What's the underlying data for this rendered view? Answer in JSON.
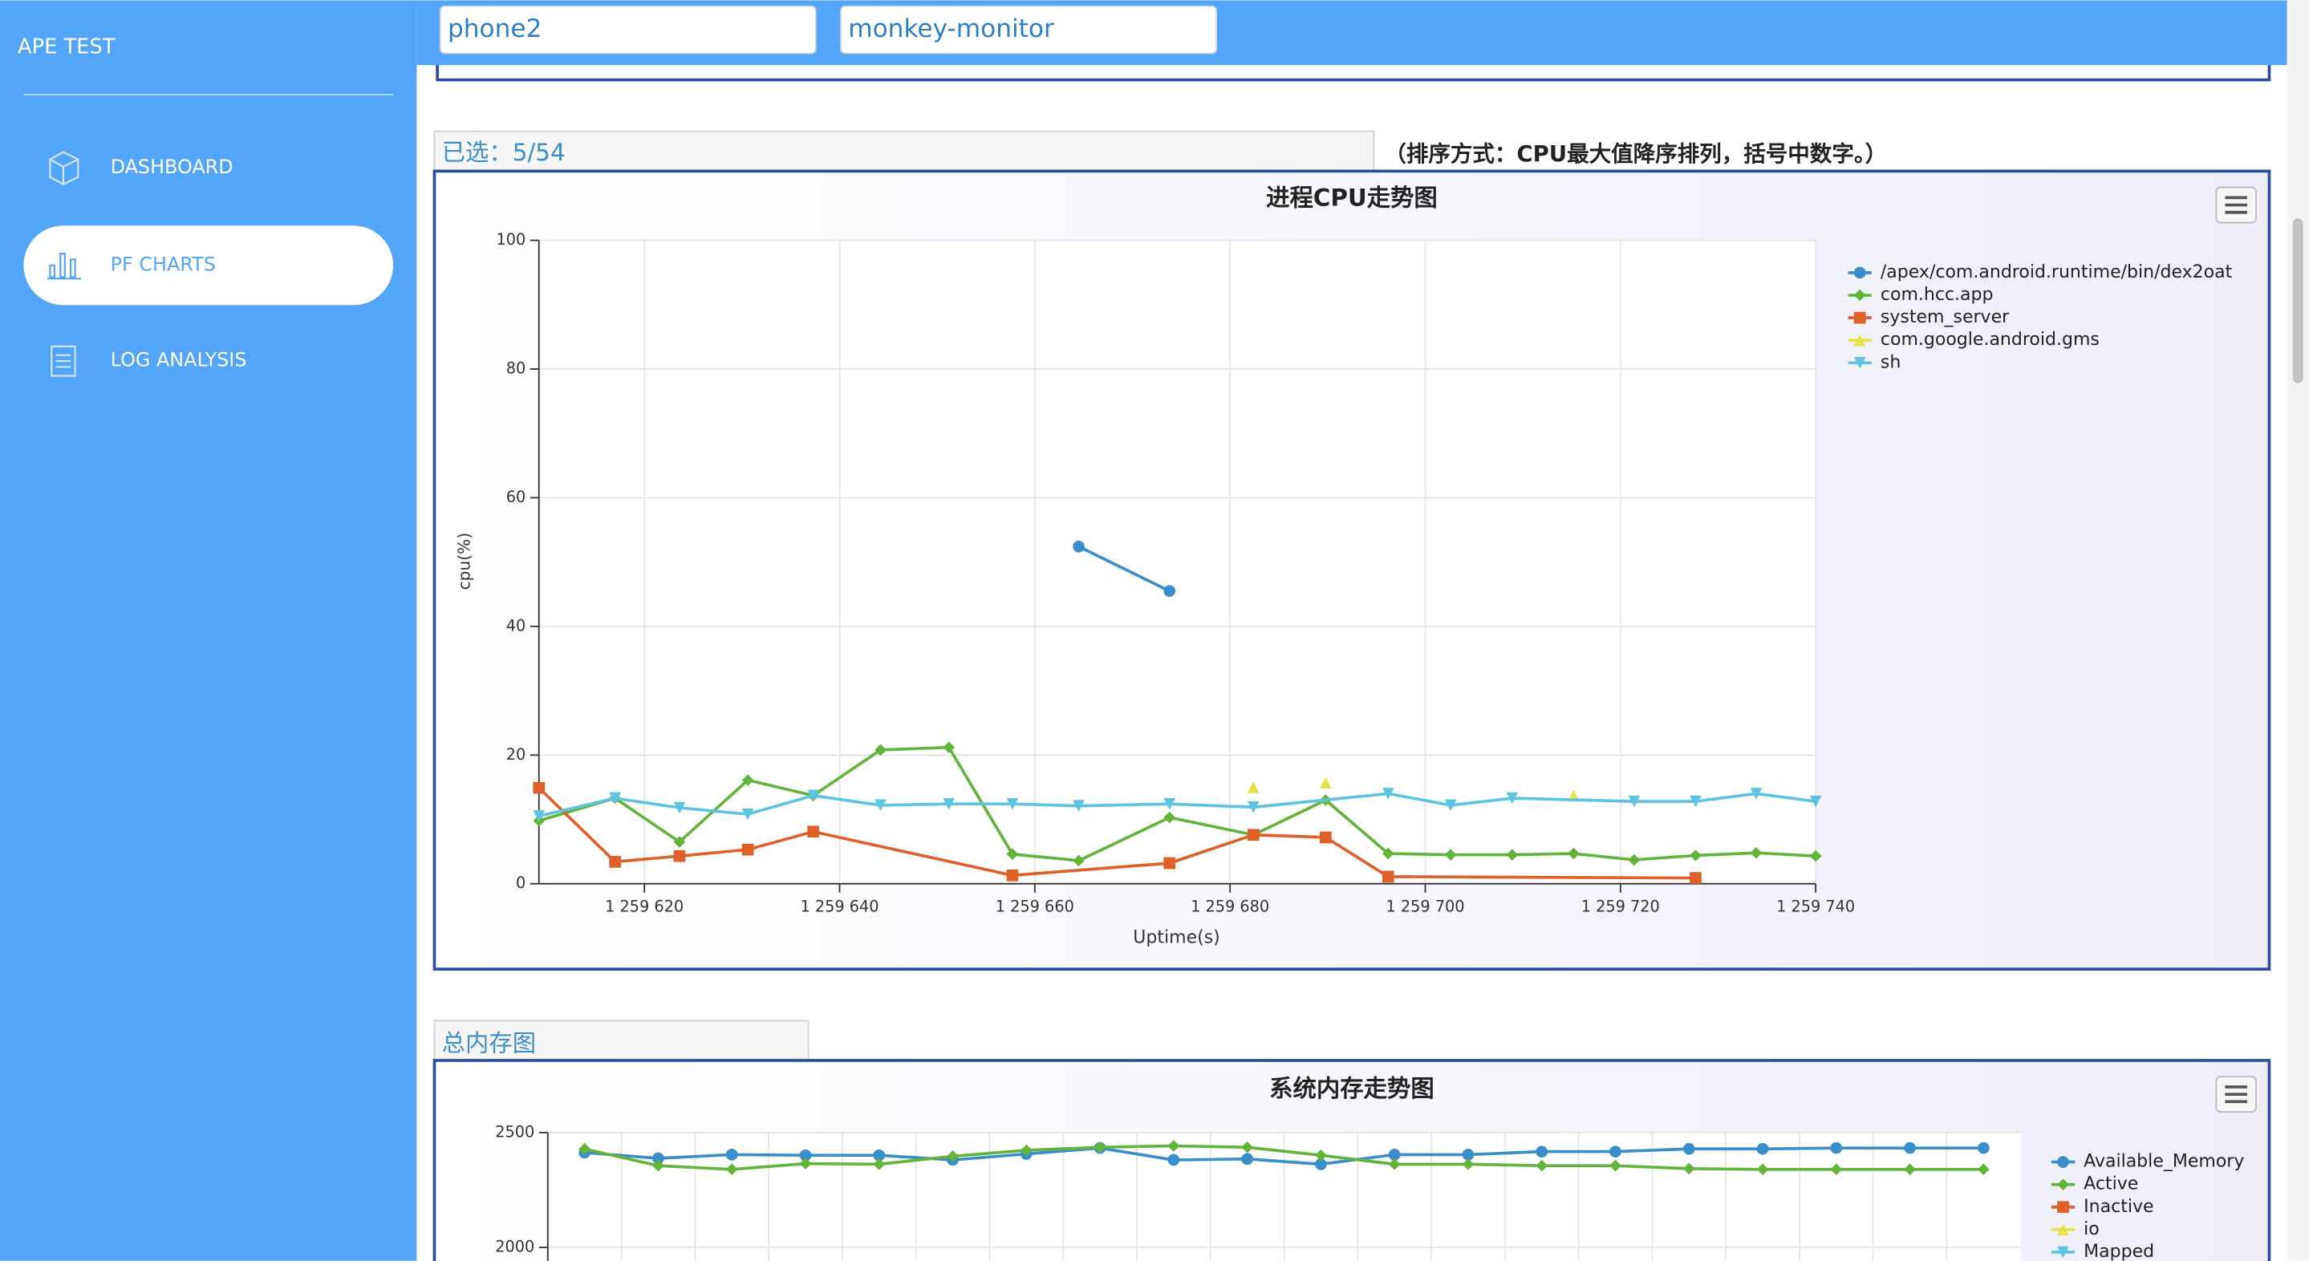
{
  "sidebar": {
    "title": "APE TEST",
    "nav": [
      "DASHBOARD",
      "PF CHARTS",
      "LOG ANALYSIS"
    ]
  },
  "header": {
    "inputs": [
      "phone2",
      "monkey-monitor"
    ]
  },
  "sections": {
    "selected": "已选：5/54",
    "sort_note": "（排序方式：CPU最大值降序排列，括号中数字。）",
    "memory": "总内存图"
  },
  "chart_data": [
    {
      "type": "line",
      "title": "进程CPU走势图",
      "y_label": "cpu(%)",
      "x_label": "Uptime(s)",
      "xlim": [
        1259609.2,
        1259740
      ],
      "xticks": [
        {
          "value": 1259620,
          "label": "1 259 620"
        },
        {
          "value": 1259640,
          "label": "1 259 640"
        },
        {
          "value": 1259660,
          "label": "1 259 660"
        },
        {
          "value": 1259680,
          "label": "1 259 680"
        },
        {
          "value": 1259700,
          "label": "1 259 700"
        },
        {
          "value": 1259720,
          "label": "1 259 720"
        },
        {
          "value": 1259740,
          "label": "1 259 740"
        }
      ],
      "ylim": [
        0,
        100
      ],
      "yticks": [
        0,
        20,
        40,
        60,
        80,
        100
      ],
      "grid": true,
      "series": [
        {
          "name": "/apex/com.android.runtime/bin/dex2oat",
          "color": "#3a8ec9",
          "marker": "circle",
          "x": [
            1259664.5,
            1259673.8
          ],
          "values": [
            52.4,
            45.5
          ]
        },
        {
          "name": "com.hcc.app",
          "color": "#64b43c",
          "marker": "diamond",
          "x": [
            1259609.2,
            1259617,
            1259623.6,
            1259630.6,
            1259637.3,
            1259644.2,
            1259651.2,
            1259657.7,
            1259664.5,
            1259673.8,
            1259682.4,
            1259689.8,
            1259696.2,
            1259702.6,
            1259708.9,
            1259715.2,
            1259721.4,
            1259727.7,
            1259733.9,
            1259740
          ],
          "values": [
            9.8,
            13.3,
            6.5,
            16.1,
            13.7,
            20.8,
            21.2,
            4.6,
            3.6,
            10.3,
            7.6,
            13,
            4.7,
            4.5,
            4.5,
            4.7,
            3.7,
            4.4,
            4.8,
            4.3
          ]
        },
        {
          "name": "system_server",
          "color": "#e0602a",
          "marker": "square",
          "x": [
            1259609.2,
            1259617,
            1259623.6,
            1259630.6,
            1259637.3,
            1259657.7,
            1259673.8,
            1259682.4,
            1259689.8,
            1259696.2,
            1259727.7
          ],
          "values": [
            14.9,
            3.4,
            4.3,
            5.3,
            8.1,
            1.3,
            3.2,
            7.6,
            7.2,
            1.1,
            0.9
          ]
        },
        {
          "name": "com.google.android.gms",
          "color": "#e6e34a",
          "marker": "triangle",
          "line": false,
          "x": [
            1259682.4,
            1259689.8,
            1259715.2
          ],
          "values": [
            15,
            15.7,
            13.7
          ]
        },
        {
          "name": "sh",
          "color": "#5ec4e0",
          "marker": "triangle-down",
          "x": [
            1259609.2,
            1259617,
            1259623.6,
            1259630.6,
            1259637.3,
            1259644.2,
            1259651.2,
            1259657.7,
            1259664.5,
            1259673.8,
            1259682.4,
            1259696.2,
            1259702.6,
            1259708.9,
            1259721.4,
            1259727.7,
            1259733.9,
            1259740
          ],
          "values": [
            10.5,
            13.3,
            11.8,
            10.8,
            13.7,
            12.2,
            12.4,
            12.4,
            12.1,
            12.4,
            11.9,
            14,
            12.2,
            13.3,
            12.8,
            12.8,
            14,
            12.8
          ]
        }
      ]
    },
    {
      "type": "line",
      "title": "系统内存走势图",
      "categories": [
        null,
        null,
        null,
        null,
        null,
        null,
        null,
        null,
        null,
        null,
        null,
        null,
        null,
        null,
        null,
        null,
        null,
        null,
        null,
        null
      ],
      "ylim": [
        2000,
        2500
      ],
      "yticks": [
        2000,
        2500
      ],
      "grid": true,
      "series": [
        {
          "name": "Available_Memory",
          "color": "#3a8ec9",
          "marker": "circle",
          "values": [
            2413,
            2388,
            2404,
            2401,
            2401,
            2381,
            2407,
            2433,
            2381,
            2385,
            2362,
            2404,
            2404,
            2417,
            2417,
            2429,
            2429,
            2433,
            2433,
            2433
          ]
        },
        {
          "name": "Active",
          "color": "#64b43c",
          "marker": "diamond",
          "values": [
            2429,
            2356,
            2340,
            2365,
            2362,
            2397,
            2423,
            2436,
            2442,
            2436,
            2401,
            2362,
            2362,
            2356,
            2356,
            2343,
            2340,
            2340,
            2340,
            2340
          ]
        },
        {
          "name": "Inactive",
          "color": "#e0602a",
          "marker": "square"
        },
        {
          "name": "io",
          "color": "#e6e34a",
          "marker": "triangle"
        },
        {
          "name": "Mapped",
          "color": "#5ec4e0",
          "marker": "triangle-down"
        }
      ]
    }
  ]
}
